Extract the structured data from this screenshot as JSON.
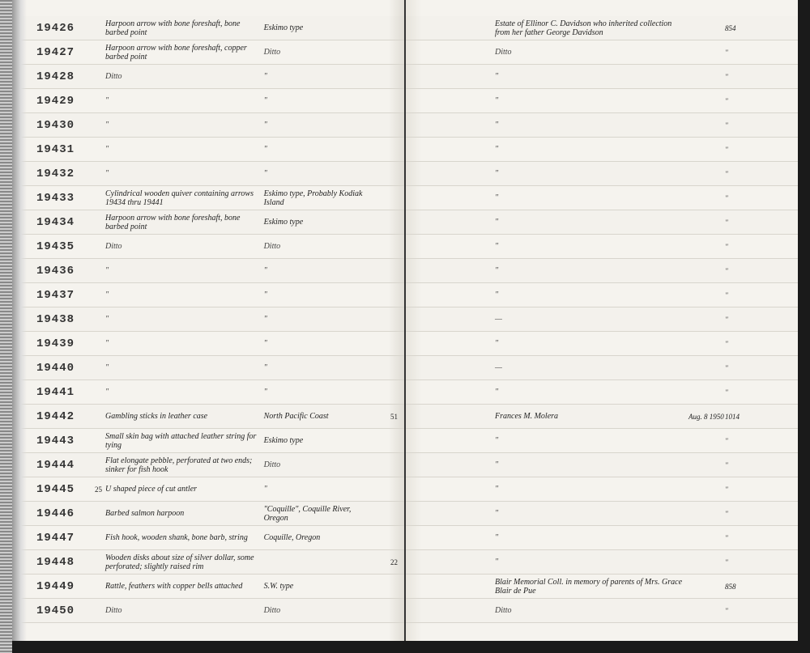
{
  "rows": [
    {
      "num": "19426",
      "margin": "",
      "desc": "Harpoon arrow with bone foreshaft, bone barbed point",
      "loc": "Eskimo type",
      "rnote": "",
      "source": "Estate of Ellinor C. Davidson who inherited collection from her father George Davidson",
      "date": "",
      "ref": "854",
      "end": ""
    },
    {
      "num": "19427",
      "margin": "",
      "desc": "Harpoon arrow with bone foreshaft, copper barbed point",
      "loc": "Ditto",
      "rnote": "",
      "source": "Ditto",
      "date": "",
      "ref": "\"",
      "end": ""
    },
    {
      "num": "19428",
      "margin": "",
      "desc": "Ditto",
      "loc": "\"",
      "rnote": "",
      "source": "\"",
      "date": "",
      "ref": "\"",
      "end": ""
    },
    {
      "num": "19429",
      "margin": "",
      "desc": "\"",
      "loc": "\"",
      "rnote": "",
      "source": "\"",
      "date": "",
      "ref": "\"",
      "end": ""
    },
    {
      "num": "19430",
      "margin": "",
      "desc": "\"",
      "loc": "\"",
      "rnote": "",
      "source": "\"",
      "date": "",
      "ref": "\"",
      "end": ""
    },
    {
      "num": "19431",
      "margin": "",
      "desc": "\"",
      "loc": "\"",
      "rnote": "",
      "source": "\"",
      "date": "",
      "ref": "\"",
      "end": ""
    },
    {
      "num": "19432",
      "margin": "",
      "desc": "\"",
      "loc": "\"",
      "rnote": "",
      "source": "\"",
      "date": "",
      "ref": "\"",
      "end": ""
    },
    {
      "num": "19433",
      "margin": "",
      "desc": "Cylindrical wooden quiver containing arrows 19434 thru 19441",
      "loc": "Eskimo type, Probably Kodiak Island",
      "rnote": "",
      "source": "\"",
      "date": "",
      "ref": "\"",
      "end": ""
    },
    {
      "num": "19434",
      "margin": "",
      "desc": "Harpoon arrow with bone foreshaft, bone barbed point",
      "loc": "Eskimo type",
      "rnote": "",
      "source": "\"",
      "date": "",
      "ref": "\"",
      "end": ""
    },
    {
      "num": "19435",
      "margin": "",
      "desc": "Ditto",
      "loc": "Ditto",
      "rnote": "",
      "source": "\"",
      "date": "",
      "ref": "\"",
      "end": ""
    },
    {
      "num": "19436",
      "margin": "",
      "desc": "\"",
      "loc": "\"",
      "rnote": "",
      "source": "\"",
      "date": "",
      "ref": "\"",
      "end": ""
    },
    {
      "num": "19437",
      "margin": "",
      "desc": "\"",
      "loc": "\"",
      "rnote": "",
      "source": "\"",
      "date": "",
      "ref": "\"",
      "end": ""
    },
    {
      "num": "19438",
      "margin": "",
      "desc": "\"",
      "loc": "\"",
      "rnote": "",
      "source": "—",
      "date": "",
      "ref": "\"",
      "end": ""
    },
    {
      "num": "19439",
      "margin": "",
      "desc": "\"",
      "loc": "\"",
      "rnote": "",
      "source": "\"",
      "date": "",
      "ref": "\"",
      "end": ""
    },
    {
      "num": "19440",
      "margin": "",
      "desc": "\"",
      "loc": "\"",
      "rnote": "",
      "source": "—",
      "date": "",
      "ref": "\"",
      "end": ""
    },
    {
      "num": "19441",
      "margin": "",
      "desc": "\"",
      "loc": "\"",
      "rnote": "",
      "source": "\"",
      "date": "",
      "ref": "\"",
      "end": ""
    },
    {
      "num": "19442",
      "margin": "",
      "desc": "Gambling sticks in leather case",
      "loc": "North Pacific Coast",
      "rnote": "51",
      "source": "Frances M. Molera",
      "date": "Aug. 8 1950",
      "ref": "1014",
      "end": ""
    },
    {
      "num": "19443",
      "margin": "",
      "desc": "Small skin bag with attached leather string for tying",
      "loc": "Eskimo type",
      "rnote": "",
      "source": "\"",
      "date": "",
      "ref": "\"",
      "end": ""
    },
    {
      "num": "19444",
      "margin": "",
      "desc": "Flat elongate pebble, perforated at two ends; sinker for fish hook",
      "loc": "Ditto",
      "rnote": "",
      "source": "\"",
      "date": "",
      "ref": "\"",
      "end": ""
    },
    {
      "num": "19445",
      "margin": "25",
      "desc": "U shaped piece of cut antler",
      "loc": "\"",
      "rnote": "",
      "source": "\"",
      "date": "",
      "ref": "\"",
      "end": ""
    },
    {
      "num": "19446",
      "margin": "",
      "desc": "Barbed salmon harpoon",
      "loc": "\"Coquille\", Coquille River, Oregon",
      "rnote": "",
      "source": "\"",
      "date": "",
      "ref": "\"",
      "end": ""
    },
    {
      "num": "19447",
      "margin": "",
      "desc": "Fish hook, wooden shank, bone barb, string",
      "loc": "Coquille, Oregon",
      "rnote": "",
      "source": "\"",
      "date": "",
      "ref": "\"",
      "end": ""
    },
    {
      "num": "19448",
      "margin": "",
      "desc": "Wooden disks about size of silver dollar, some perforated; slightly raised rim",
      "loc": "",
      "rnote": "22",
      "source": "\"",
      "date": "",
      "ref": "\"",
      "end": ""
    },
    {
      "num": "19449",
      "margin": "",
      "desc": "Rattle, feathers with copper bells attached",
      "loc": "S.W. type",
      "rnote": "",
      "source": "Blair Memorial Coll. in memory of parents of Mrs. Grace Blair de Pue",
      "date": "",
      "ref": "858",
      "end": ""
    },
    {
      "num": "19450",
      "margin": "",
      "desc": "Ditto",
      "loc": "Ditto",
      "rnote": "",
      "source": "Ditto",
      "date": "",
      "ref": "\"",
      "end": ""
    }
  ],
  "style": {
    "page_bg": "#f5f3ee",
    "rule_color": "#d8d5cd",
    "catnum_font": "Courier New",
    "body_font": "Brush Script MT",
    "ink_color": "#222"
  }
}
